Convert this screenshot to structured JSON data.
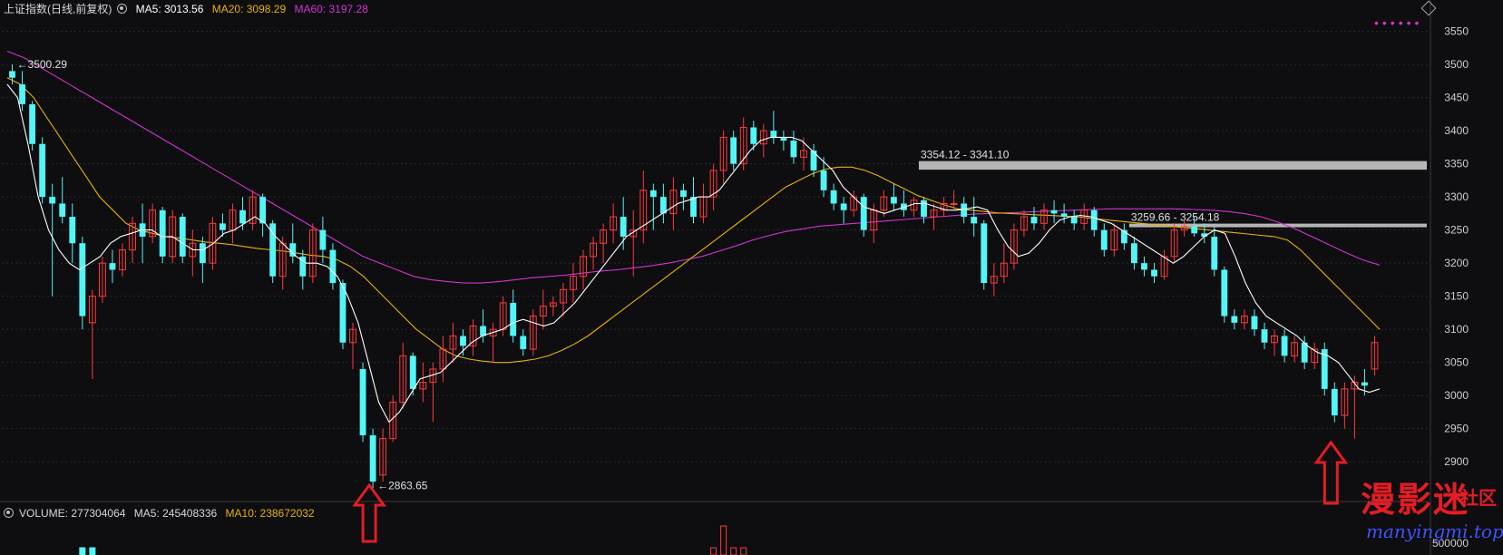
{
  "header": {
    "title": "上证指数(日线,前复权)",
    "ma5_label": "MA5: 3013.56",
    "ma20_label": "MA20: 3098.29",
    "ma60_label": "MA60: 3197.28",
    "ma5_color": "#ffffff",
    "ma20_color": "#e8b400",
    "ma60_color": "#d234d4"
  },
  "volume_header": {
    "title": "VOLUME: 277304064",
    "ma5_label": "MA5: 245408336",
    "ma10_label": "MA10: 238672032",
    "ma10_color": "#e8b400"
  },
  "chart_data": {
    "type": "candlestick",
    "ylim": [
      2840,
      3570
    ],
    "y_ticks": [
      2900,
      2950,
      3000,
      3050,
      3100,
      3150,
      3200,
      3250,
      3300,
      3350,
      3400,
      3450,
      3500,
      3550
    ],
    "volume_tick": "500000",
    "colors": {
      "up": "#ff3b3b",
      "down": "#52f6f6",
      "ma5": "#ffffff",
      "ma20": "#e8b400",
      "ma60": "#d234d4"
    },
    "candles": [
      [
        3490,
        3500,
        3470,
        3480
      ],
      [
        3470,
        3490,
        3430,
        3440
      ],
      [
        3440,
        3445,
        3370,
        3380
      ],
      [
        3380,
        3390,
        3290,
        3300
      ],
      [
        3300,
        3320,
        3150,
        3290
      ],
      [
        3290,
        3330,
        3260,
        3270
      ],
      [
        3270,
        3290,
        3200,
        3230
      ],
      [
        3230,
        3240,
        3100,
        3120
      ],
      [
        3110,
        3160,
        3025,
        3150
      ],
      [
        3150,
        3210,
        3140,
        3200
      ],
      [
        3200,
        3220,
        3170,
        3190
      ],
      [
        3190,
        3230,
        3180,
        3220
      ],
      [
        3220,
        3270,
        3200,
        3260
      ],
      [
        3260,
        3290,
        3200,
        3240
      ],
      [
        3240,
        3290,
        3230,
        3280
      ],
      [
        3280,
        3285,
        3200,
        3210
      ],
      [
        3210,
        3280,
        3200,
        3270
      ],
      [
        3270,
        3275,
        3200,
        3210
      ],
      [
        3210,
        3250,
        3180,
        3230
      ],
      [
        3230,
        3240,
        3170,
        3200
      ],
      [
        3200,
        3270,
        3190,
        3260
      ],
      [
        3260,
        3275,
        3240,
        3250
      ],
      [
        3250,
        3290,
        3230,
        3280
      ],
      [
        3280,
        3300,
        3250,
        3260
      ],
      [
        3260,
        3310,
        3250,
        3300
      ],
      [
        3300,
        3305,
        3240,
        3260
      ],
      [
        3260,
        3265,
        3170,
        3180
      ],
      [
        3180,
        3240,
        3160,
        3230
      ],
      [
        3230,
        3260,
        3200,
        3210
      ],
      [
        3210,
        3220,
        3160,
        3180
      ],
      [
        3180,
        3260,
        3170,
        3250
      ],
      [
        3250,
        3270,
        3200,
        3220
      ],
      [
        3220,
        3230,
        3160,
        3170
      ],
      [
        3170,
        3175,
        3070,
        3080
      ],
      [
        3080,
        3110,
        3040,
        3100
      ],
      [
        3040,
        3050,
        2930,
        2940
      ],
      [
        2940,
        2950,
        2860,
        2870
      ],
      [
        2880,
        2950,
        2870,
        2935
      ],
      [
        2935,
        3000,
        2930,
        2990
      ],
      [
        2990,
        3080,
        2980,
        3060
      ],
      [
        3060,
        3065,
        3000,
        3010
      ],
      [
        3010,
        3050,
        2990,
        3020
      ],
      [
        3020,
        3050,
        2960,
        3040
      ],
      [
        3040,
        3090,
        3020,
        3070
      ],
      [
        3070,
        3110,
        3050,
        3090
      ],
      [
        3090,
        3100,
        3060,
        3075
      ],
      [
        3075,
        3115,
        3060,
        3105
      ],
      [
        3105,
        3130,
        3080,
        3090
      ],
      [
        3090,
        3110,
        3050,
        3100
      ],
      [
        3100,
        3150,
        3090,
        3140
      ],
      [
        3140,
        3160,
        3080,
        3090
      ],
      [
        3090,
        3100,
        3060,
        3070
      ],
      [
        3070,
        3130,
        3060,
        3120
      ],
      [
        3120,
        3160,
        3100,
        3135
      ],
      [
        3135,
        3150,
        3120,
        3140
      ],
      [
        3140,
        3170,
        3120,
        3160
      ],
      [
        3160,
        3200,
        3140,
        3180
      ],
      [
        3180,
        3220,
        3160,
        3210
      ],
      [
        3210,
        3240,
        3190,
        3230
      ],
      [
        3230,
        3260,
        3200,
        3250
      ],
      [
        3250,
        3290,
        3230,
        3270
      ],
      [
        3270,
        3300,
        3220,
        3240
      ],
      [
        3240,
        3280,
        3180,
        3250
      ],
      [
        3250,
        3340,
        3230,
        3310
      ],
      [
        3310,
        3320,
        3250,
        3300
      ],
      [
        3300,
        3320,
        3260,
        3275
      ],
      [
        3275,
        3330,
        3250,
        3310
      ],
      [
        3310,
        3320,
        3280,
        3300
      ],
      [
        3300,
        3330,
        3260,
        3270
      ],
      [
        3270,
        3320,
        3260,
        3300
      ],
      [
        3300,
        3350,
        3280,
        3340
      ],
      [
        3340,
        3400,
        3320,
        3390
      ],
      [
        3390,
        3400,
        3340,
        3350
      ],
      [
        3350,
        3420,
        3340,
        3405
      ],
      [
        3405,
        3415,
        3370,
        3380
      ],
      [
        3380,
        3410,
        3360,
        3400
      ],
      [
        3400,
        3430,
        3380,
        3390
      ],
      [
        3390,
        3400,
        3370,
        3385
      ],
      [
        3385,
        3400,
        3350,
        3360
      ],
      [
        3360,
        3390,
        3340,
        3370
      ],
      [
        3370,
        3380,
        3330,
        3340
      ],
      [
        3340,
        3360,
        3300,
        3310
      ],
      [
        3310,
        3320,
        3280,
        3290
      ],
      [
        3290,
        3300,
        3260,
        3280
      ],
      [
        3280,
        3310,
        3270,
        3300
      ],
      [
        3300,
        3305,
        3240,
        3250
      ],
      [
        3250,
        3290,
        3230,
        3280
      ],
      [
        3280,
        3310,
        3270,
        3300
      ],
      [
        3300,
        3320,
        3280,
        3290
      ],
      [
        3290,
        3310,
        3270,
        3280
      ],
      [
        3280,
        3300,
        3270,
        3295
      ],
      [
        3295,
        3300,
        3260,
        3270
      ],
      [
        3270,
        3290,
        3250,
        3280
      ],
      [
        3280,
        3300,
        3270,
        3290
      ],
      [
        3290,
        3310,
        3280,
        3290
      ],
      [
        3290,
        3300,
        3260,
        3270
      ],
      [
        3270,
        3300,
        3240,
        3260
      ],
      [
        3260,
        3265,
        3160,
        3170
      ],
      [
        3170,
        3200,
        3150,
        3180
      ],
      [
        3180,
        3230,
        3170,
        3200
      ],
      [
        3200,
        3260,
        3190,
        3250
      ],
      [
        3250,
        3280,
        3240,
        3270
      ],
      [
        3270,
        3285,
        3250,
        3260
      ],
      [
        3260,
        3290,
        3250,
        3280
      ],
      [
        3280,
        3295,
        3260,
        3275
      ],
      [
        3275,
        3290,
        3260,
        3270
      ],
      [
        3270,
        3280,
        3250,
        3260
      ],
      [
        3260,
        3290,
        3250,
        3280
      ],
      [
        3280,
        3285,
        3240,
        3250
      ],
      [
        3250,
        3260,
        3210,
        3220
      ],
      [
        3220,
        3260,
        3210,
        3250
      ],
      [
        3250,
        3260,
        3220,
        3230
      ],
      [
        3230,
        3240,
        3190,
        3200
      ],
      [
        3200,
        3210,
        3180,
        3190
      ],
      [
        3190,
        3200,
        3170,
        3180
      ],
      [
        3180,
        3220,
        3175,
        3210
      ],
      [
        3210,
        3260,
        3200,
        3250
      ],
      [
        3250,
        3265,
        3240,
        3255
      ],
      [
        3255,
        3270,
        3240,
        3245
      ],
      [
        3245,
        3260,
        3230,
        3240
      ],
      [
        3240,
        3255,
        3180,
        3190
      ],
      [
        3190,
        3195,
        3110,
        3120
      ],
      [
        3120,
        3130,
        3100,
        3110
      ],
      [
        3110,
        3130,
        3100,
        3120
      ],
      [
        3120,
        3130,
        3090,
        3100
      ],
      [
        3100,
        3110,
        3070,
        3080
      ],
      [
        3080,
        3100,
        3060,
        3090
      ],
      [
        3090,
        3100,
        3050,
        3060
      ],
      [
        3060,
        3090,
        3050,
        3080
      ],
      [
        3080,
        3090,
        3040,
        3050
      ],
      [
        3050,
        3080,
        3040,
        3070
      ],
      [
        3070,
        3080,
        3000,
        3010
      ],
      [
        3010,
        3020,
        2960,
        2970
      ],
      [
        2970,
        3020,
        2950,
        3010
      ],
      [
        3010,
        3030,
        2935,
        3020
      ],
      [
        3020,
        3040,
        3000,
        3015
      ],
      [
        3040,
        3090,
        3030,
        3080
      ]
    ],
    "ma5_points": [
      3470,
      3450,
      3380,
      3300,
      3250,
      3220,
      3200,
      3190,
      3200,
      3210,
      3230,
      3240,
      3245,
      3250,
      3250,
      3240,
      3240,
      3230,
      3220,
      3220,
      3230,
      3245,
      3250,
      3260,
      3270,
      3260,
      3240,
      3225,
      3210,
      3200,
      3200,
      3195,
      3180,
      3150,
      3110,
      3050,
      2990,
      2960,
      2975,
      3000,
      3025,
      3030,
      3035,
      3050,
      3065,
      3080,
      3090,
      3095,
      3100,
      3110,
      3115,
      3110,
      3105,
      3110,
      3125,
      3140,
      3160,
      3180,
      3200,
      3220,
      3240,
      3250,
      3260,
      3270,
      3280,
      3290,
      3295,
      3300,
      3300,
      3310,
      3330,
      3350,
      3370,
      3385,
      3390,
      3390,
      3390,
      3385,
      3370,
      3355,
      3340,
      3315,
      3300,
      3285,
      3280,
      3275,
      3280,
      3285,
      3290,
      3290,
      3285,
      3280,
      3280,
      3282,
      3285,
      3280,
      3250,
      3225,
      3210,
      3215,
      3230,
      3250,
      3265,
      3270,
      3272,
      3270,
      3265,
      3260,
      3250,
      3240,
      3230,
      3220,
      3210,
      3200,
      3210,
      3225,
      3240,
      3250,
      3245,
      3210,
      3170,
      3140,
      3120,
      3110,
      3100,
      3090,
      3075,
      3065,
      3060,
      3050,
      3030,
      3010,
      3005,
      3010
    ],
    "ma20_points": [
      3480,
      3470,
      3450,
      3420,
      3390,
      3360,
      3330,
      3300,
      3280,
      3260,
      3250,
      3245,
      3240,
      3238,
      3235,
      3232,
      3230,
      3228,
      3225,
      3222,
      3220,
      3218,
      3215,
      3212,
      3210,
      3205,
      3195,
      3180,
      3160,
      3140,
      3120,
      3100,
      3085,
      3070,
      3060,
      3055,
      3052,
      3050,
      3050,
      3052,
      3055,
      3060,
      3068,
      3078,
      3090,
      3105,
      3120,
      3135,
      3150,
      3165,
      3180,
      3195,
      3210,
      3225,
      3240,
      3255,
      3270,
      3285,
      3300,
      3315,
      3325,
      3335,
      3342,
      3345,
      3345,
      3340,
      3332,
      3322,
      3312,
      3302,
      3295,
      3288,
      3282,
      3280,
      3278,
      3276,
      3275,
      3274,
      3273,
      3272,
      3271,
      3270,
      3268,
      3266,
      3264,
      3262,
      3260,
      3258,
      3256,
      3254,
      3252,
      3250,
      3248,
      3246,
      3244,
      3242,
      3240,
      3235,
      3220,
      3200,
      3180,
      3160,
      3140,
      3120,
      3100
    ],
    "ma60_points": [
      3520,
      3510,
      3495,
      3480,
      3465,
      3450,
      3435,
      3420,
      3405,
      3390,
      3375,
      3360,
      3345,
      3330,
      3315,
      3300,
      3285,
      3270,
      3255,
      3240,
      3225,
      3210,
      3200,
      3190,
      3180,
      3175,
      3172,
      3170,
      3170,
      3172,
      3175,
      3178,
      3180,
      3182,
      3185,
      3188,
      3190,
      3193,
      3196,
      3200,
      3205,
      3210,
      3218,
      3226,
      3235,
      3242,
      3248,
      3252,
      3256,
      3258,
      3260,
      3262,
      3264,
      3266,
      3268,
      3270,
      3272,
      3274,
      3275,
      3276,
      3277,
      3278,
      3279,
      3280,
      3281,
      3282,
      3282,
      3282,
      3282,
      3282,
      3281,
      3280,
      3278,
      3275,
      3270,
      3262,
      3252,
      3240,
      3228,
      3216,
      3205,
      3197
    ],
    "ranges": [
      {
        "label": "3354.12 - 3341.10",
        "low": 3341.1,
        "high": 3354.12,
        "from_index": 91
      },
      {
        "label": "3259.66 - 3254.18",
        "low": 3254.18,
        "high": 3259.66,
        "from_index": 112
      }
    ],
    "annotations": [
      {
        "label": "3500.29",
        "value": 3500.29,
        "index": 0
      },
      {
        "label": "2863.65",
        "value": 2863.65,
        "index": 36
      }
    ],
    "highlight_arrows": [
      36,
      132
    ],
    "volume_bars": [
      7,
      8,
      70,
      71,
      72,
      73
    ]
  },
  "watermark": {
    "cn": "漫影迷",
    "cn_small": "社区",
    "url": "manyingmi.top"
  },
  "toolbar": {
    "dots_icon": "more-dots-icon",
    "diamond_icon": "diamond-icon"
  }
}
